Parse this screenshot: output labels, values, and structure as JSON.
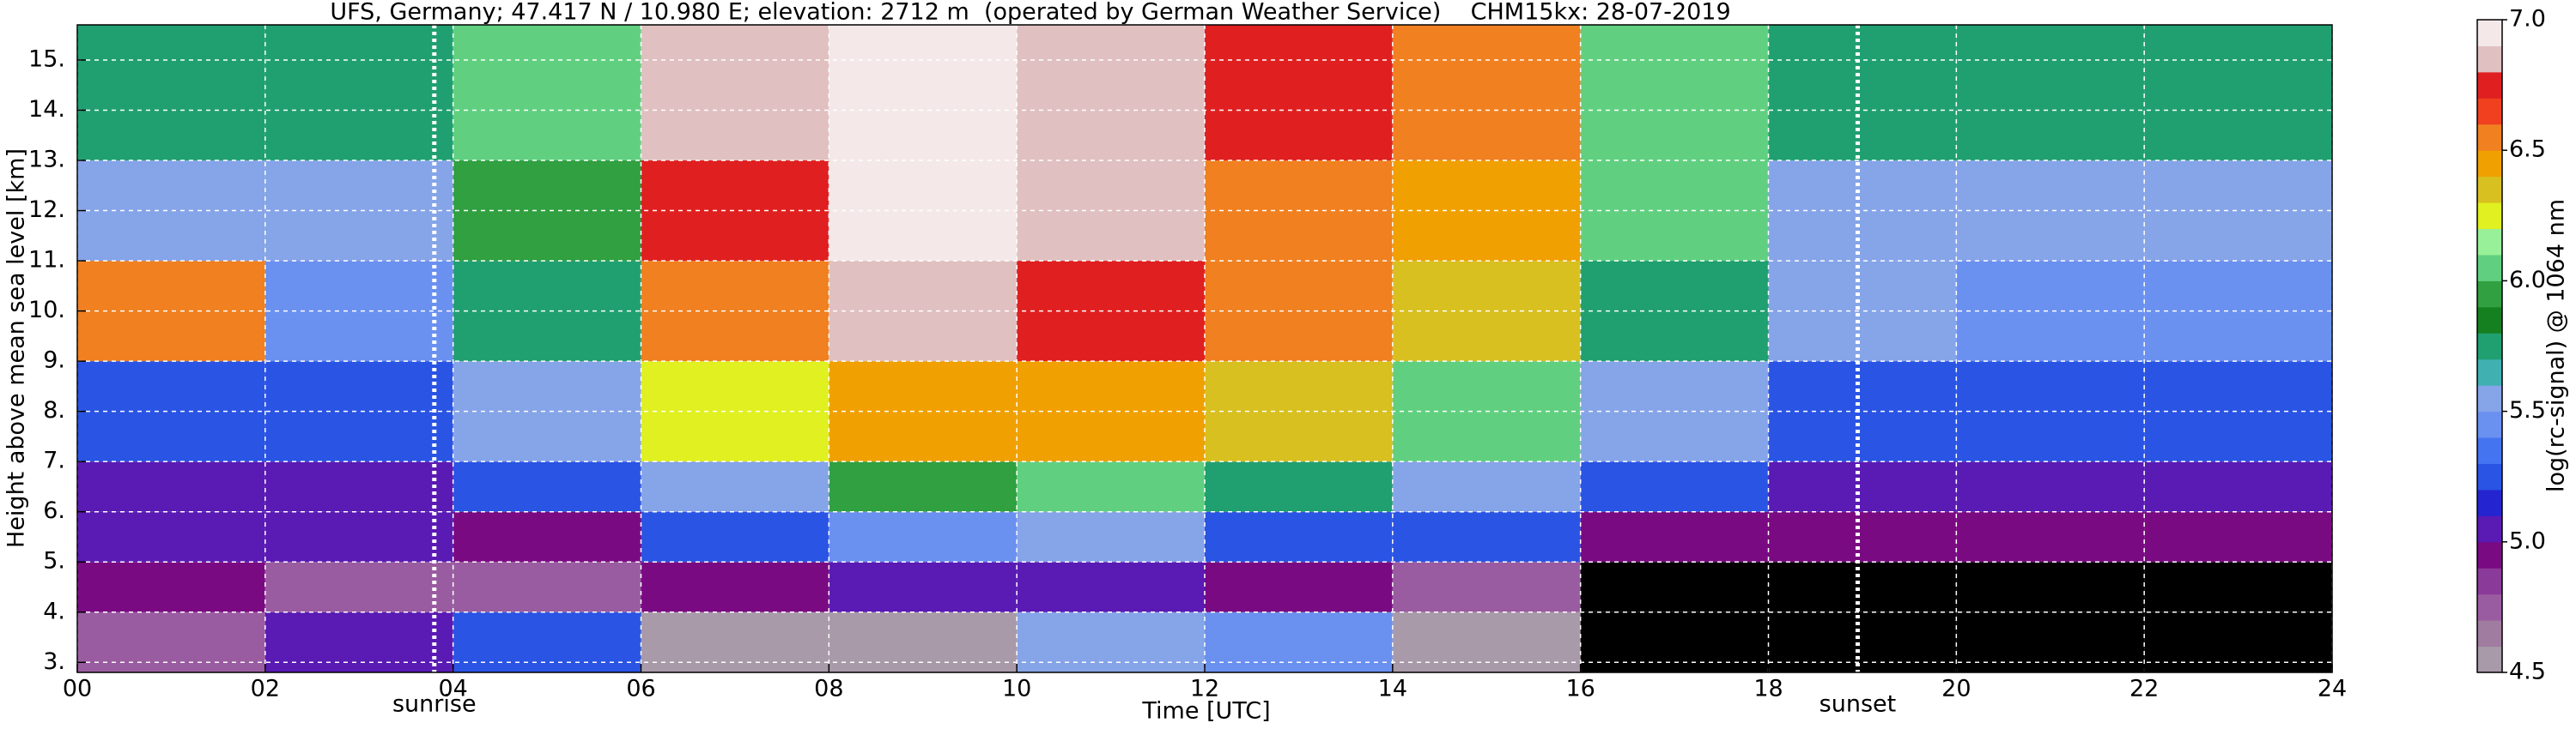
{
  "chart_data": {
    "type": "heatmap",
    "title": "UFS, Germany; 47.417 N / 10.980 E; elevation: 2712 m  (operated by German Weather Service)    CHM15kx: 28-07-2019",
    "x_label": "Time [UTC]",
    "y_label": "Height above mean sea level [km]",
    "colorbar_label": "log(rc-signal) @ 1064 nm",
    "xlim": [
      0,
      24
    ],
    "ylim": [
      2.8,
      15.7
    ],
    "xticks": [
      {
        "value": 0,
        "label": "00"
      },
      {
        "value": 2,
        "label": "02"
      },
      {
        "value": 4,
        "label": "04"
      },
      {
        "value": 6,
        "label": "06"
      },
      {
        "value": 8,
        "label": "08"
      },
      {
        "value": 10,
        "label": "10"
      },
      {
        "value": 12,
        "label": "12"
      },
      {
        "value": 14,
        "label": "14"
      },
      {
        "value": 16,
        "label": "16"
      },
      {
        "value": 18,
        "label": "18"
      },
      {
        "value": 20,
        "label": "20"
      },
      {
        "value": 22,
        "label": "22"
      },
      {
        "value": 24,
        "label": "24"
      }
    ],
    "yticks": [
      {
        "value": 3,
        "label": "3."
      },
      {
        "value": 4,
        "label": "4."
      },
      {
        "value": 5,
        "label": "5."
      },
      {
        "value": 6,
        "label": "6."
      },
      {
        "value": 7,
        "label": "7."
      },
      {
        "value": 8,
        "label": "8."
      },
      {
        "value": 9,
        "label": "9."
      },
      {
        "value": 10,
        "label": "10."
      },
      {
        "value": 11,
        "label": "11."
      },
      {
        "value": 12,
        "label": "12."
      },
      {
        "value": 13,
        "label": "13."
      },
      {
        "value": 14,
        "label": "14."
      },
      {
        "value": 15,
        "label": "15."
      }
    ],
    "grid": true,
    "annotations": [
      {
        "text": "sunrise",
        "x": 3.8
      },
      {
        "text": "sunset",
        "x": 18.95
      }
    ],
    "colorbar_lim": [
      4.5,
      7.0
    ],
    "colorbar_ticks": [
      4.5,
      {
        "value": 5.0,
        "label": "5.0"
      },
      5.5,
      {
        "value": 6.0,
        "label": "6.0"
      },
      6.5,
      {
        "value": 7.0,
        "label": "7.0"
      }
    ],
    "colormap": [
      "#a89aa8",
      "#a07ca0",
      "#9a5ca0",
      "#8a3a98",
      "#7a0a82",
      "#5a1ab4",
      "#2424d0",
      "#2a54e4",
      "#4474f0",
      "#6a90f0",
      "#86a4e8",
      "#40b0b0",
      "#20a070",
      "#148020",
      "#30a040",
      "#60d080",
      "#98f098",
      "#e0f020",
      "#d8c020",
      "#f0a000",
      "#f08020",
      "#f04020",
      "#e02020",
      "#e0c0c0",
      "#f4e8e8"
    ],
    "under_color": "#000000",
    "heatmap": {
      "x_edges": [
        0,
        2,
        4,
        6,
        8,
        10,
        12,
        14,
        16,
        18,
        20,
        22,
        24
      ],
      "y_edges": [
        2.8,
        4,
        5,
        6,
        7,
        9,
        11,
        13,
        15.7
      ],
      "values": [
        [
          4.8,
          5.0,
          5.2,
          4.6,
          4.6,
          5.6,
          5.4,
          4.6,
          4.3,
          4.3,
          4.3,
          4.3
        ],
        [
          4.9,
          4.8,
          4.7,
          4.9,
          5.0,
          5.0,
          4.9,
          4.8,
          4.3,
          4.3,
          4.3,
          4.3
        ],
        [
          5.0,
          5.0,
          4.9,
          5.2,
          5.4,
          5.5,
          5.3,
          5.2,
          4.9,
          4.9,
          4.9,
          4.9
        ],
        [
          5.1,
          5.1,
          5.3,
          5.6,
          5.9,
          6.0,
          5.7,
          5.5,
          5.3,
          5.0,
          5.0,
          5.0
        ],
        [
          5.2,
          5.2,
          5.5,
          6.2,
          6.4,
          6.4,
          6.3,
          6.1,
          5.6,
          5.3,
          5.2,
          5.2
        ],
        [
          6.5,
          5.4,
          5.8,
          6.6,
          6.8,
          6.7,
          6.5,
          6.3,
          5.8,
          5.5,
          5.4,
          5.4
        ],
        [
          5.6,
          5.5,
          5.9,
          6.7,
          6.9,
          6.8,
          6.6,
          6.4,
          6.0,
          5.6,
          5.6,
          5.6
        ],
        [
          5.8,
          5.7,
          6.0,
          6.8,
          6.9,
          6.8,
          6.7,
          6.5,
          6.1,
          5.8,
          5.7,
          5.7
        ]
      ]
    }
  }
}
